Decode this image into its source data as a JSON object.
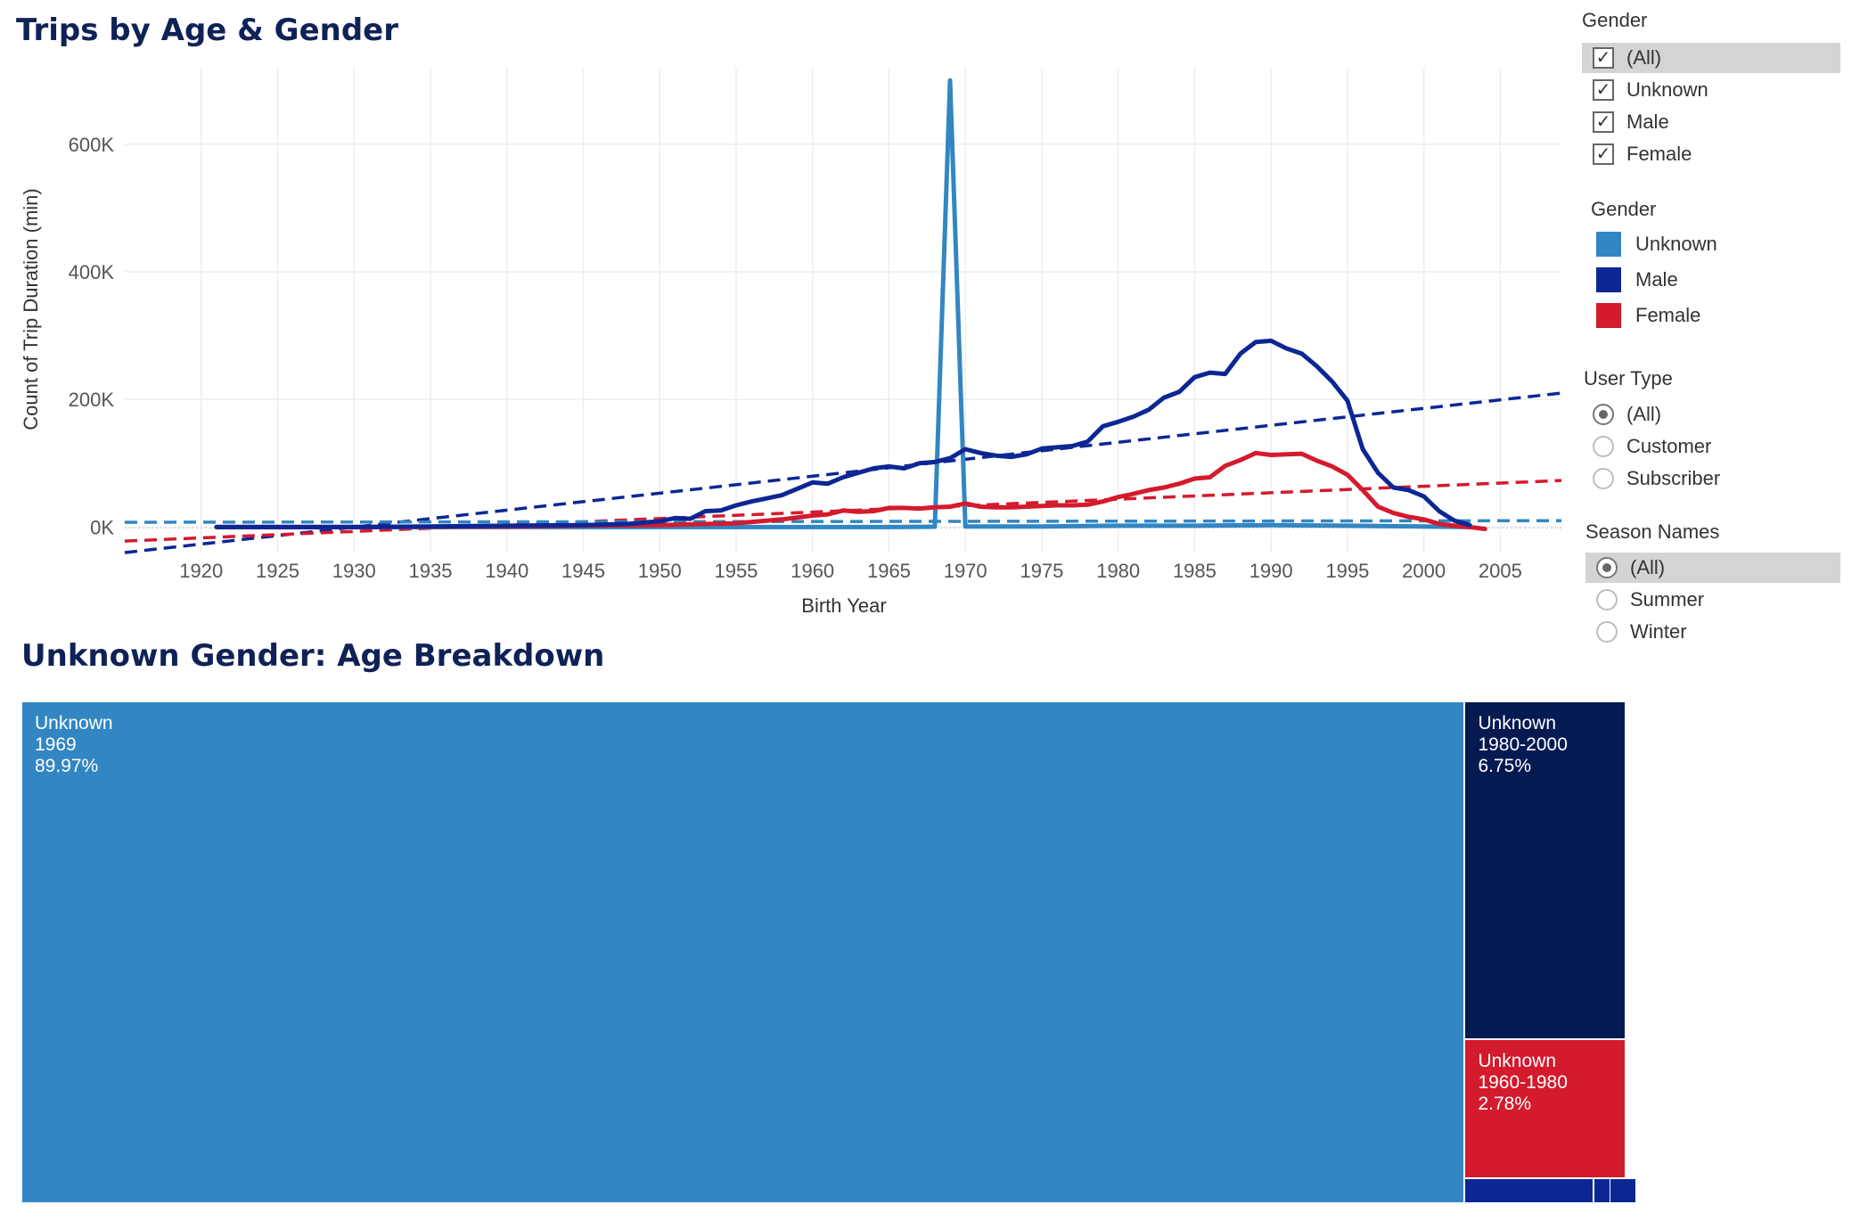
{
  "line_chart_title": "Trips by Age & Gender",
  "treemap_title": "Unknown Gender: Age Breakdown",
  "filters": {
    "gender_filter": {
      "title": "Gender",
      "options": [
        {
          "label": "(All)",
          "checked": true
        },
        {
          "label": "Unknown",
          "checked": true
        },
        {
          "label": "Male",
          "checked": true
        },
        {
          "label": "Female",
          "checked": true
        }
      ]
    },
    "gender_legend": {
      "title": "Gender",
      "items": [
        {
          "label": "Unknown",
          "color": "#3286c2"
        },
        {
          "label": "Male",
          "color": "#0c2794"
        },
        {
          "label": "Female",
          "color": "#d41a2d"
        }
      ]
    },
    "user_type": {
      "title": "User Type",
      "options": [
        {
          "label": "(All)",
          "selected": true
        },
        {
          "label": "Customer",
          "selected": false
        },
        {
          "label": "Subscriber",
          "selected": false
        }
      ]
    },
    "season": {
      "title": "Season Names",
      "options": [
        {
          "label": "(All)",
          "selected": true
        },
        {
          "label": "Summer",
          "selected": false
        },
        {
          "label": "Winter",
          "selected": false
        }
      ]
    }
  },
  "chart_data": [
    {
      "type": "line",
      "title": "Trips by Age & Gender",
      "xlabel": "Birth Year",
      "ylabel": "Count of Trip Duration (min)",
      "xlim": [
        1915,
        2009
      ],
      "ylim": [
        -40000,
        720000
      ],
      "x_ticks": [
        1920,
        1925,
        1930,
        1935,
        1940,
        1945,
        1950,
        1955,
        1960,
        1965,
        1970,
        1975,
        1980,
        1985,
        1990,
        1995,
        2000,
        2005
      ],
      "y_ticks": [
        0,
        200000,
        400000,
        600000
      ],
      "y_tick_labels": [
        "0K",
        "200K",
        "400K",
        "600K"
      ],
      "grid": true,
      "series": [
        {
          "name": "Male",
          "color": "#0c2794",
          "points": [
            [
              1921,
              0
            ],
            [
              1925,
              0
            ],
            [
              1930,
              0
            ],
            [
              1935,
              1000
            ],
            [
              1940,
              2000
            ],
            [
              1945,
              3000
            ],
            [
              1948,
              5000
            ],
            [
              1950,
              9000
            ],
            [
              1951,
              14000
            ],
            [
              1952,
              13000
            ],
            [
              1953,
              25000
            ],
            [
              1954,
              26000
            ],
            [
              1955,
              34000
            ],
            [
              1956,
              40000
            ],
            [
              1957,
              45000
            ],
            [
              1958,
              50000
            ],
            [
              1959,
              60000
            ],
            [
              1960,
              70000
            ],
            [
              1961,
              68000
            ],
            [
              1962,
              78000
            ],
            [
              1963,
              85000
            ],
            [
              1964,
              92000
            ],
            [
              1965,
              95000
            ],
            [
              1966,
              92000
            ],
            [
              1967,
              100000
            ],
            [
              1968,
              102000
            ],
            [
              1969,
              108000
            ],
            [
              1970,
              122000
            ],
            [
              1971,
              116000
            ],
            [
              1972,
              112000
            ],
            [
              1973,
              110000
            ],
            [
              1974,
              114000
            ],
            [
              1975,
              123000
            ],
            [
              1976,
              125000
            ],
            [
              1977,
              127000
            ],
            [
              1978,
              134000
            ],
            [
              1979,
              158000
            ],
            [
              1980,
              165000
            ],
            [
              1981,
              173000
            ],
            [
              1982,
              184000
            ],
            [
              1983,
              203000
            ],
            [
              1984,
              212000
            ],
            [
              1985,
              235000
            ],
            [
              1986,
              242000
            ],
            [
              1987,
              240000
            ],
            [
              1988,
              272000
            ],
            [
              1989,
              290000
            ],
            [
              1990,
              292000
            ],
            [
              1991,
              280000
            ],
            [
              1992,
              272000
            ],
            [
              1993,
              252000
            ],
            [
              1994,
              228000
            ],
            [
              1995,
              198000
            ],
            [
              1996,
              122000
            ],
            [
              1997,
              85000
            ],
            [
              1998,
              62000
            ],
            [
              1999,
              58000
            ],
            [
              2000,
              48000
            ],
            [
              2001,
              25000
            ],
            [
              2002,
              10000
            ],
            [
              2003,
              3000
            ]
          ]
        },
        {
          "name": "Female",
          "color": "#d41a2d",
          "points": [
            [
              1921,
              0
            ],
            [
              1925,
              0
            ],
            [
              1930,
              0
            ],
            [
              1935,
              500
            ],
            [
              1940,
              1000
            ],
            [
              1945,
              2000
            ],
            [
              1950,
              3000
            ],
            [
              1955,
              6000
            ],
            [
              1958,
              12000
            ],
            [
              1960,
              18000
            ],
            [
              1961,
              20000
            ],
            [
              1962,
              26000
            ],
            [
              1963,
              24000
            ],
            [
              1964,
              25000
            ],
            [
              1965,
              30000
            ],
            [
              1966,
              30000
            ],
            [
              1967,
              29000
            ],
            [
              1968,
              31000
            ],
            [
              1969,
              32000
            ],
            [
              1970,
              37000
            ],
            [
              1971,
              32000
            ],
            [
              1972,
              31000
            ],
            [
              1973,
              31000
            ],
            [
              1974,
              32000
            ],
            [
              1975,
              33000
            ],
            [
              1976,
              34000
            ],
            [
              1977,
              34000
            ],
            [
              1978,
              35000
            ],
            [
              1979,
              40000
            ],
            [
              1980,
              47000
            ],
            [
              1981,
              52000
            ],
            [
              1982,
              58000
            ],
            [
              1983,
              62000
            ],
            [
              1984,
              68000
            ],
            [
              1985,
              76000
            ],
            [
              1986,
              78000
            ],
            [
              1987,
              96000
            ],
            [
              1988,
              105000
            ],
            [
              1989,
              116000
            ],
            [
              1990,
              113000
            ],
            [
              1991,
              114000
            ],
            [
              1992,
              115000
            ],
            [
              1993,
              104000
            ],
            [
              1994,
              95000
            ],
            [
              1995,
              82000
            ],
            [
              1996,
              58000
            ],
            [
              1997,
              32000
            ],
            [
              1998,
              22000
            ],
            [
              1999,
              16000
            ],
            [
              2000,
              12000
            ],
            [
              2001,
              5000
            ],
            [
              2002,
              2000
            ],
            [
              2003,
              0
            ],
            [
              2004,
              -3000
            ]
          ]
        },
        {
          "name": "Unknown",
          "color": "#3286c2",
          "points": [
            [
              1921,
              0
            ],
            [
              1930,
              0
            ],
            [
              1940,
              0
            ],
            [
              1950,
              0
            ],
            [
              1960,
              0
            ],
            [
              1965,
              0
            ],
            [
              1968,
              500
            ],
            [
              1969,
              700000
            ],
            [
              1970,
              1000
            ],
            [
              1975,
              1000
            ],
            [
              1980,
              2000
            ],
            [
              1985,
              2000
            ],
            [
              1990,
              3000
            ],
            [
              1995,
              2000
            ],
            [
              2000,
              1000
            ],
            [
              2003,
              0
            ]
          ]
        }
      ],
      "trend_lines": [
        {
          "name": "Male",
          "color": "#0c2794",
          "from": [
            1915,
            -40000
          ],
          "to": [
            2009,
            210000
          ]
        },
        {
          "name": "Female",
          "color": "#d41a2d",
          "from": [
            1915,
            -22000
          ],
          "to": [
            2009,
            73000
          ]
        },
        {
          "name": "Unknown",
          "color": "#3286c2",
          "from": [
            1915,
            7500
          ],
          "to": [
            2009,
            10000
          ]
        }
      ]
    },
    {
      "type": "treemap",
      "title": "Unknown Gender: Age Breakdown",
      "tiles": [
        {
          "gender": "Unknown",
          "range": "1969",
          "percent": "89.97%",
          "value": 89.97,
          "color": "#3286c2"
        },
        {
          "gender": "Unknown",
          "range": "1980-2000",
          "percent": "6.75%",
          "value": 6.75,
          "color": "#061a52"
        },
        {
          "gender": "Unknown",
          "range": "1960-1980",
          "percent": "2.78%",
          "value": 2.78,
          "color": "#d41a2d"
        },
        {
          "gender": "Unknown",
          "range": "",
          "percent": "",
          "value": 0.4,
          "color": "#0c2794"
        },
        {
          "gender": "Unknown",
          "range": "",
          "percent": "",
          "value": 0.05,
          "color": "#0c2794"
        },
        {
          "gender": "Unknown",
          "range": "",
          "percent": "",
          "value": 0.05,
          "color": "#0c2794"
        }
      ]
    }
  ]
}
